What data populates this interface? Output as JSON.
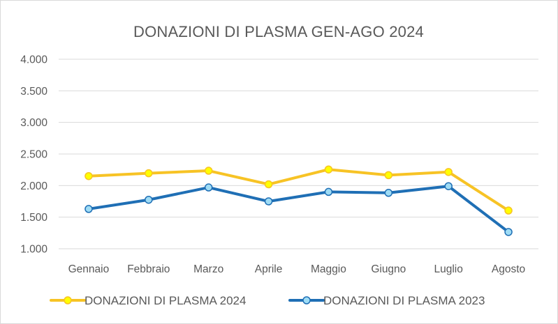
{
  "chart_data": {
    "type": "line",
    "title": "DONAZIONI DI PLASMA GEN-AGO 2024",
    "xlabel": "",
    "ylabel": "",
    "categories": [
      "Gennaio",
      "Febbraio",
      "Marzo",
      "Aprile",
      "Maggio",
      "Giugno",
      "Luglio",
      "Agosto"
    ],
    "ylim": [
      1000,
      4000
    ],
    "yticks": [
      1000,
      1500,
      2000,
      2500,
      3000,
      3500,
      4000
    ],
    "ytick_labels": [
      "1.000",
      "1.500",
      "2.000",
      "2.500",
      "3.000",
      "3.500",
      "4.000"
    ],
    "grid": true,
    "legend_position": "bottom",
    "series": [
      {
        "name": "DONAZIONI DI PLASMA 2024",
        "color": "#f7c325",
        "marker_fill": "#ffff00",
        "values": [
          2150,
          2195,
          2235,
          2020,
          2255,
          2165,
          2215,
          1605
        ]
      },
      {
        "name": "DONAZIONI DI PLASMA 2023",
        "color": "#1f6fb5",
        "marker_fill": "#9fdcf5",
        "values": [
          1630,
          1775,
          1970,
          1750,
          1900,
          1885,
          1990,
          1265
        ]
      }
    ]
  }
}
